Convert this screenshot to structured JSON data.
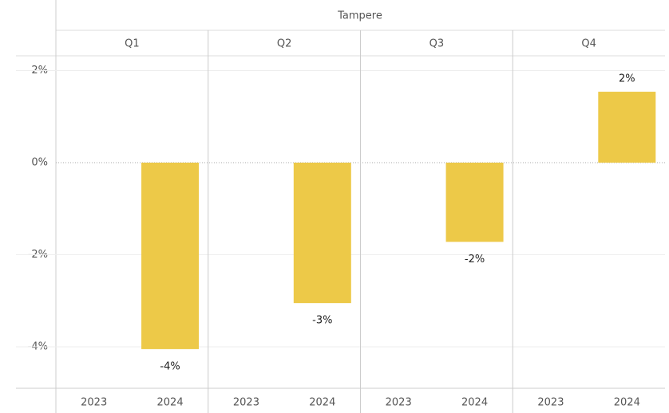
{
  "chart_data": {
    "type": "bar",
    "title": "Tampere",
    "columns": [
      "Q1",
      "Q2",
      "Q3",
      "Q4"
    ],
    "categories": [
      "2023",
      "2024"
    ],
    "values": [
      [
        null,
        -4.05
      ],
      [
        null,
        -3.05
      ],
      [
        null,
        -1.72
      ],
      [
        null,
        1.54
      ]
    ],
    "value_labels": [
      [
        null,
        "-4%"
      ],
      [
        null,
        "-3%"
      ],
      [
        null,
        "-2%"
      ],
      [
        null,
        "2%"
      ]
    ],
    "color": "#edc948",
    "ylim": [
      -4.9,
      2.32
    ],
    "yticks": [
      {
        "value": -4,
        "label": "-4%"
      },
      {
        "value": -2,
        "label": "-2%"
      },
      {
        "value": 0,
        "label": "0%"
      },
      {
        "value": 2,
        "label": "2%"
      }
    ],
    "grid": true
  }
}
